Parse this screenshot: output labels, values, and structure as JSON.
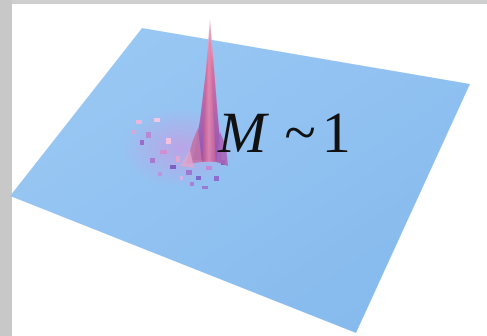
{
  "annotation": {
    "variable": "M",
    "operator": "~",
    "value": "1"
  },
  "colors": {
    "surface": "#8ec0f0",
    "peak": "#d06a9a",
    "background": "#ffffff",
    "frame": "#c8c8c8"
  }
}
